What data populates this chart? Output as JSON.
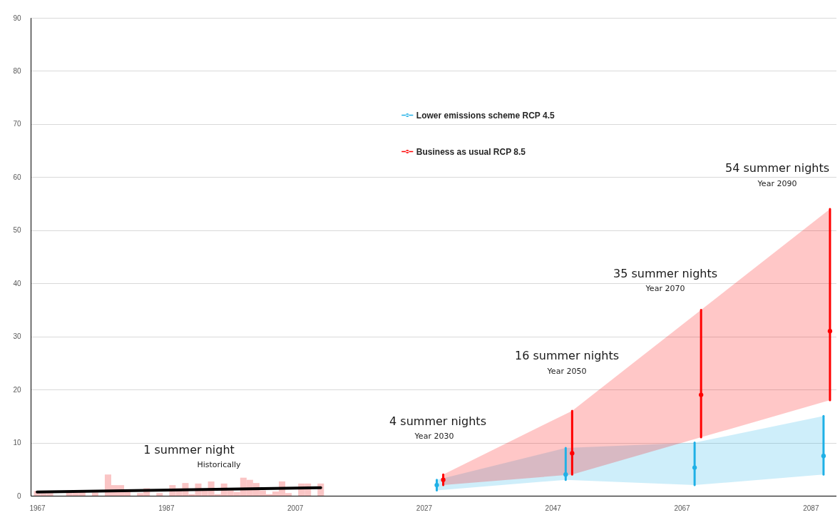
{
  "chart_data": {
    "type": "bar",
    "xlim": [
      1966,
      2091
    ],
    "xticks": [
      1967,
      1987,
      2007,
      2027,
      2047,
      2067,
      2087
    ],
    "ylim": [
      0,
      90
    ],
    "yticks": [
      0,
      10,
      20,
      30,
      40,
      50,
      60,
      70,
      80,
      90
    ],
    "grid": "y",
    "legend": "top",
    "series": [
      {
        "color": "#fac5c5",
        "x": [
          1967,
          1968,
          1969,
          1970,
          1971,
          1972,
          1973,
          1974,
          1975,
          1976,
          1977,
          1978,
          1979,
          1980,
          1981,
          1982,
          1983,
          1984,
          1985,
          1986,
          1987,
          1988,
          1989,
          1990,
          1991,
          1992,
          1993,
          1994,
          1995,
          1996,
          1997,
          1998,
          1999,
          2000,
          2001,
          2002,
          2003,
          2004,
          2005,
          2006,
          2007,
          2008,
          2009,
          2010,
          2011
        ],
        "values": [
          0.9,
          0.5,
          0.5,
          0,
          0,
          0.6,
          0.6,
          0.7,
          0,
          0.6,
          0,
          4.0,
          2.0,
          2.0,
          0.8,
          0,
          0.5,
          1.4,
          0,
          0.5,
          0,
          2.0,
          1.4,
          2.4,
          0.3,
          2.3,
          1.0,
          2.7,
          0.3,
          2.3,
          1.0,
          0.7,
          3.4,
          3.0,
          2.4,
          1.0,
          0.3,
          0.8,
          2.7,
          0.5,
          0,
          2.3,
          2.3,
          0,
          2.3
        ]
      },
      {
        "type": "line",
        "color": "#000000",
        "x": [
          1967,
          2011
        ],
        "values": [
          0.7,
          1.5
        ]
      },
      {
        "name": "Lower emissions scheme RCP 4.5",
        "type": "scatter",
        "marker": "circle",
        "color": "#1fb0e6",
        "x": [
          2029,
          2049,
          2069,
          2089
        ],
        "values": [
          2,
          4,
          5.3,
          7.5
        ],
        "errors": [
          [
            1,
            3
          ],
          [
            3,
            9
          ],
          [
            2,
            10
          ],
          [
            4,
            15
          ]
        ],
        "lower": [
          1,
          3,
          2,
          4
        ],
        "upper": [
          3,
          9,
          10,
          15
        ]
      },
      {
        "name": "Business as usual RCP 8.5",
        "type": "scatter",
        "marker": "circle",
        "color": "#ff0000",
        "x": [
          2030,
          2050,
          2070,
          2090
        ],
        "values": [
          3,
          8,
          19,
          31
        ],
        "errors": [
          [
            2,
            4
          ],
          [
            4,
            16
          ],
          [
            11,
            35
          ],
          [
            18,
            54
          ]
        ],
        "lower": [
          2,
          4,
          11,
          18
        ],
        "upper": [
          4,
          16,
          35,
          54
        ]
      }
    ],
    "annotations": [
      "1 summer night",
      "Historically",
      "4 summer nights",
      "Year 2030",
      "16 summer nights",
      "Year 2050",
      "35 summer nights",
      "Year 2070",
      "54 summer nights",
      "Year 2090"
    ]
  }
}
